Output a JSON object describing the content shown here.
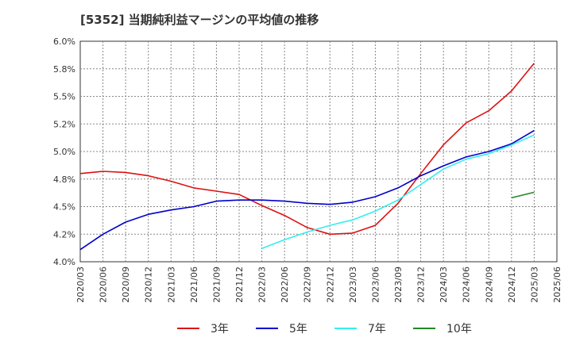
{
  "chart_data": {
    "type": "line",
    "title": "[5352]  当期純利益マージンの平均値の推移",
    "xlabel": "",
    "ylabel": "",
    "x_ticks": [
      "2020/03",
      "2020/06",
      "2020/09",
      "2020/12",
      "2021/03",
      "2021/06",
      "2021/09",
      "2021/12",
      "2022/03",
      "2022/06",
      "2022/09",
      "2022/12",
      "2023/03",
      "2023/06",
      "2023/09",
      "2023/12",
      "2024/03",
      "2024/06",
      "2024/09",
      "2024/12",
      "2025/03",
      "2025/06"
    ],
    "y_ticks": [
      "6.0%",
      "5.8%",
      "5.5%",
      "5.2%",
      "5.0%",
      "4.8%",
      "4.5%",
      "4.2%",
      "4.0%"
    ],
    "ylim": [
      4.0,
      6.0
    ],
    "grid": true,
    "legend_position": "bottom",
    "series": [
      {
        "name": "3年",
        "color": "#dd1111",
        "x": [
          "2020/03",
          "2020/06",
          "2020/09",
          "2020/12",
          "2021/03",
          "2021/06",
          "2021/09",
          "2021/12",
          "2022/03",
          "2022/06",
          "2022/09",
          "2022/12",
          "2023/03",
          "2023/06",
          "2023/09",
          "2023/12",
          "2024/03",
          "2024/06",
          "2024/09",
          "2024/12",
          "2025/03"
        ],
        "values": [
          4.8,
          4.82,
          4.81,
          4.78,
          4.73,
          4.67,
          4.64,
          4.61,
          4.51,
          4.42,
          4.31,
          4.25,
          4.26,
          4.33,
          4.53,
          4.8,
          5.06,
          5.26,
          5.37,
          5.55,
          5.8
        ]
      },
      {
        "name": "5年",
        "color": "#0000cc",
        "x": [
          "2020/03",
          "2020/06",
          "2020/09",
          "2020/12",
          "2021/03",
          "2021/06",
          "2021/09",
          "2021/12",
          "2022/03",
          "2022/06",
          "2022/09",
          "2022/12",
          "2023/03",
          "2023/06",
          "2023/09",
          "2023/12",
          "2024/03",
          "2024/06",
          "2024/09",
          "2024/12",
          "2025/03"
        ],
        "values": [
          4.11,
          4.25,
          4.36,
          4.43,
          4.47,
          4.5,
          4.55,
          4.56,
          4.56,
          4.55,
          4.53,
          4.52,
          4.54,
          4.59,
          4.67,
          4.78,
          4.87,
          4.95,
          5.0,
          5.07,
          5.19
        ]
      },
      {
        "name": "7年",
        "color": "#33eeee",
        "x": [
          "2022/03",
          "2022/06",
          "2022/09",
          "2022/12",
          "2023/03",
          "2023/06",
          "2023/09",
          "2023/12",
          "2024/03",
          "2024/06",
          "2024/09",
          "2024/12",
          "2025/03"
        ],
        "values": [
          4.12,
          4.2,
          4.27,
          4.33,
          4.38,
          4.46,
          4.56,
          4.7,
          4.84,
          4.93,
          4.98,
          5.06,
          5.15
        ]
      },
      {
        "name": "10年",
        "color": "#228822",
        "x": [
          "2024/12",
          "2025/03"
        ],
        "values": [
          4.58,
          4.63
        ]
      }
    ]
  }
}
